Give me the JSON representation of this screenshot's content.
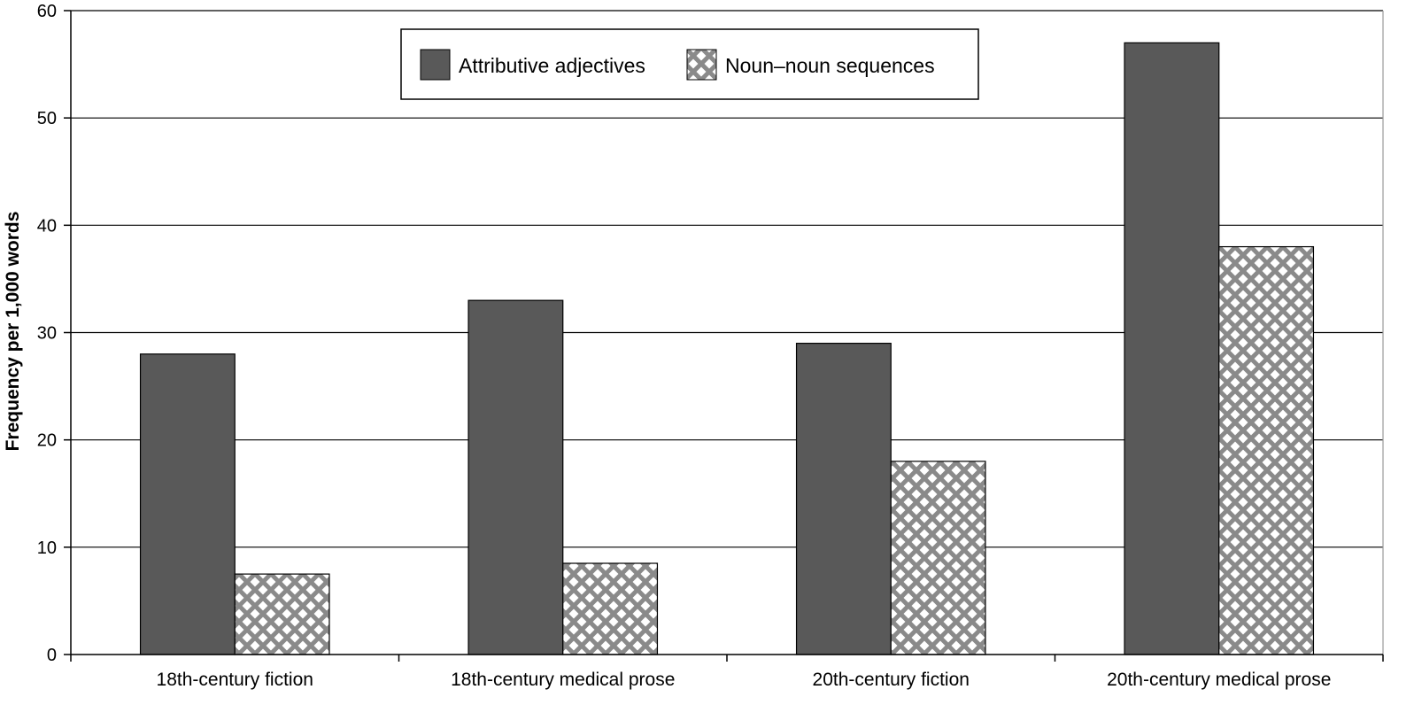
{
  "chart_data": {
    "type": "bar",
    "title": "",
    "xlabel": "",
    "ylabel": "Frequency per 1,000 words",
    "ylim": [
      0,
      60
    ],
    "yticks": [
      0,
      10,
      20,
      30,
      40,
      50,
      60
    ],
    "grid": true,
    "legend_position": "top-center",
    "categories": [
      "18th-century fiction",
      "18th-century medical prose",
      "20th-century fiction",
      "20th-century medical prose"
    ],
    "series": [
      {
        "name": "Attributive adjectives",
        "values": [
          28,
          33,
          29,
          57
        ],
        "fill": "solid",
        "color": "#595959"
      },
      {
        "name": "Noun–noun sequences",
        "values": [
          7.5,
          8.5,
          18,
          38
        ],
        "fill": "crosshatch",
        "color": "#888888"
      }
    ]
  }
}
